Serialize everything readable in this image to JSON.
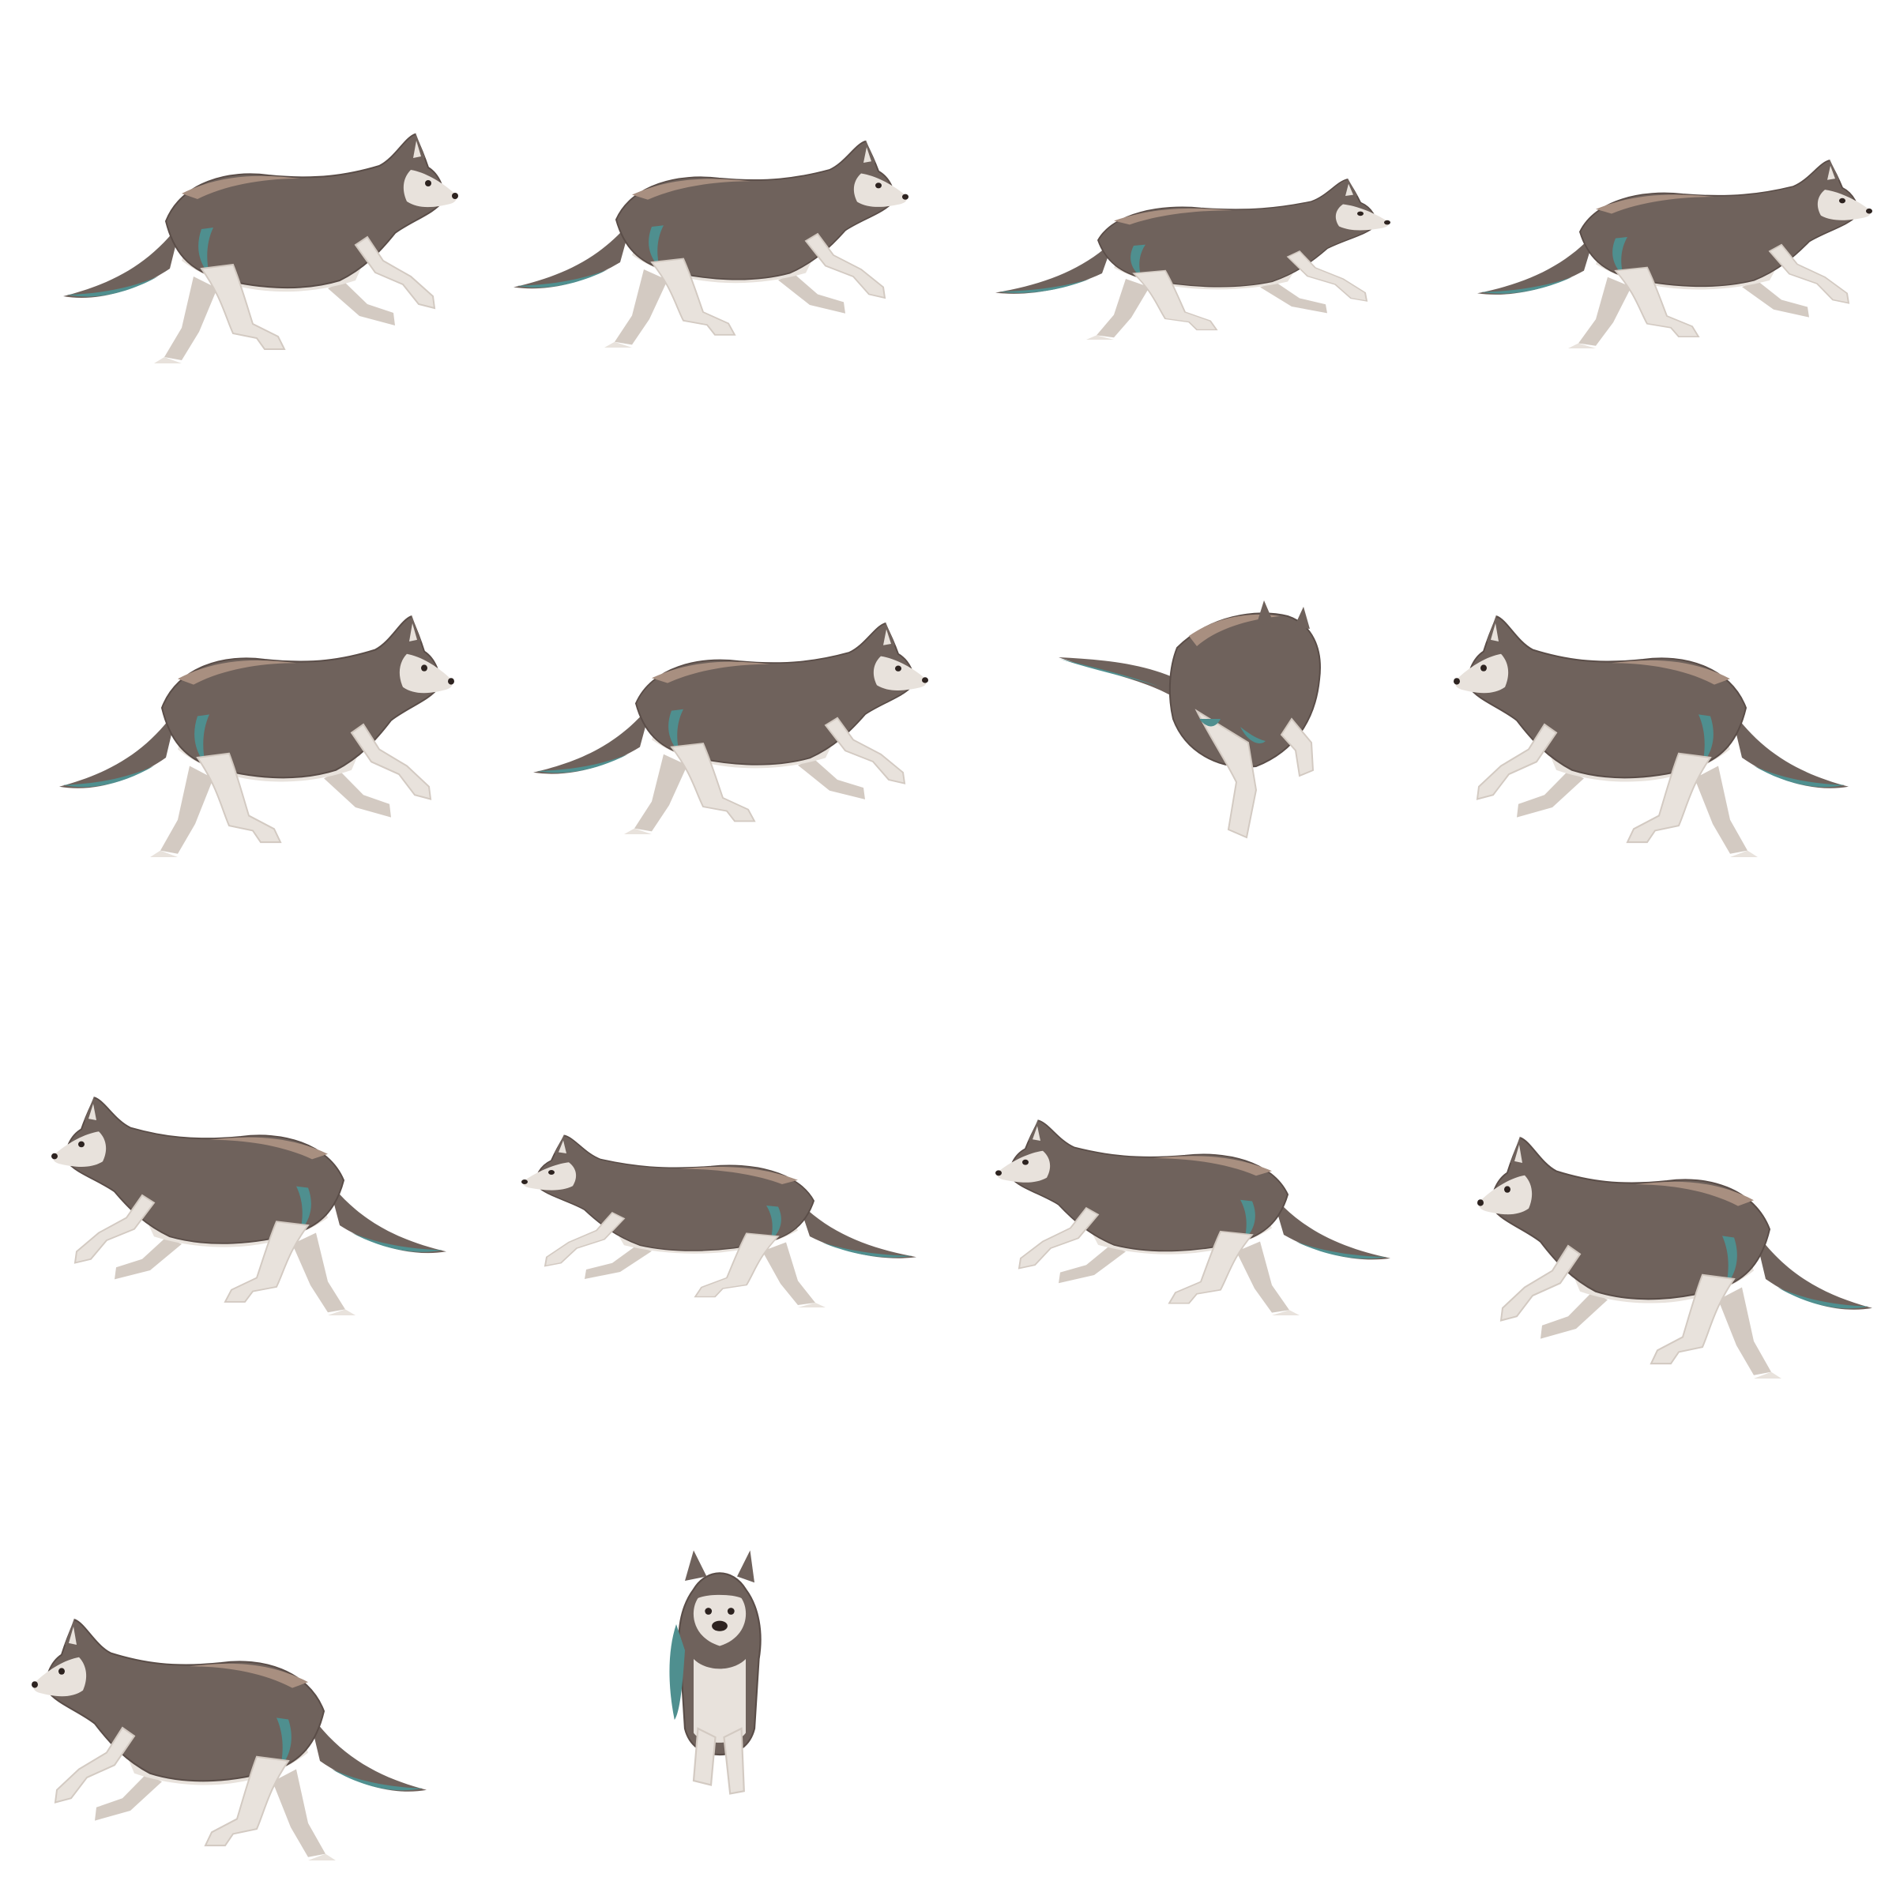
{
  "sheet": {
    "kind": "husky run-cycle sprite sheet",
    "background": "#ffffff",
    "grid": {
      "columns": 4,
      "rows": 4,
      "frame_count": 14
    }
  },
  "palette": {
    "body_fur": "#6f625c",
    "body_highlight": "#a88f80",
    "outline": "#5a4d48",
    "cream_fur": "#e8e2dc",
    "cream_shadow": "#d3cac2",
    "teal_accent": "#4f8f8f",
    "eye_nose": "#2d2320"
  },
  "frames": [
    {
      "id": 1,
      "pose": "gallop-gather",
      "facing": "right"
    },
    {
      "id": 2,
      "pose": "gallop-reach",
      "facing": "right"
    },
    {
      "id": 3,
      "pose": "gallop-extended",
      "facing": "right"
    },
    {
      "id": 4,
      "pose": "gallop-push",
      "facing": "right"
    },
    {
      "id": 5,
      "pose": "gallop-gather",
      "facing": "right"
    },
    {
      "id": 6,
      "pose": "gallop-tuck",
      "facing": "right"
    },
    {
      "id": 7,
      "pose": "turn-three-quarter",
      "facing": "away"
    },
    {
      "id": 8,
      "pose": "gallop-gather",
      "facing": "left"
    },
    {
      "id": 9,
      "pose": "gallop-reach",
      "facing": "left"
    },
    {
      "id": 10,
      "pose": "gallop-extended",
      "facing": "left"
    },
    {
      "id": 11,
      "pose": "gallop-push",
      "facing": "left"
    },
    {
      "id": 12,
      "pose": "gallop-gather",
      "facing": "left"
    },
    {
      "id": 13,
      "pose": "gallop-tuck",
      "facing": "left"
    },
    {
      "id": 14,
      "pose": "run-toward-viewer",
      "facing": "front"
    }
  ]
}
